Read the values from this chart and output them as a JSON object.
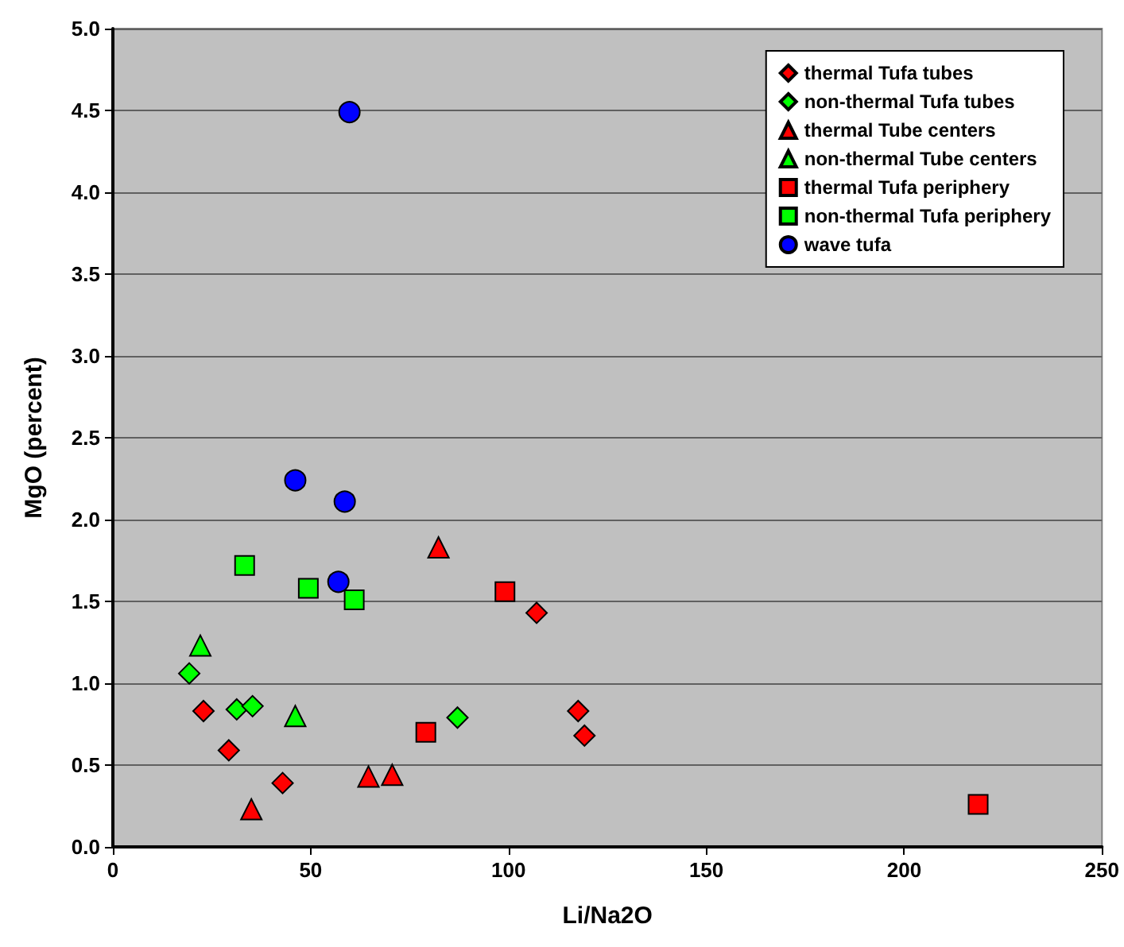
{
  "chart_data": {
    "type": "scatter",
    "xlabel": "Li/Na2O",
    "ylabel": "MgO (percent)",
    "xlim": [
      0,
      250
    ],
    "xticks": [
      0,
      50,
      100,
      150,
      200,
      250
    ],
    "ylim": [
      0,
      5
    ],
    "yticks": [
      {
        "value": 0,
        "label": "0.0"
      },
      0.5,
      {
        "value": 1,
        "label": "1.0"
      },
      1.5,
      {
        "value": 2,
        "label": "2.0"
      },
      2.5,
      {
        "value": 3,
        "label": "3.0"
      },
      3.5,
      {
        "value": 4,
        "label": "4.0"
      },
      4.5,
      {
        "value": 5,
        "label": "5.0"
      }
    ],
    "grid": "y",
    "legend": "top right",
    "series": [
      {
        "name": "thermal Tufa tubes",
        "color": "#ff0000",
        "marker": "diamond",
        "x": [
          22.9,
          29.3,
          42.9,
          107.1,
          117.6,
          119.2
        ],
        "values": [
          0.83,
          0.59,
          0.39,
          1.43,
          0.83,
          0.68
        ]
      },
      {
        "name": "non-thermal Tufa tubes",
        "color": "#00ff00",
        "marker": "diamond",
        "x": [
          19.3,
          31.3,
          35.3,
          87.1
        ],
        "values": [
          1.06,
          0.84,
          0.86,
          0.79
        ]
      },
      {
        "name": "thermal Tube centers",
        "color": "#ff0000",
        "marker": "triangle",
        "x": [
          35.0,
          64.6,
          70.6,
          82.3
        ],
        "values": [
          0.23,
          0.43,
          0.44,
          1.83
        ]
      },
      {
        "name": "non-thermal Tube centers",
        "color": "#00ff00",
        "marker": "triangle",
        "x": [
          22.1,
          46.1
        ],
        "values": [
          1.23,
          0.8
        ]
      },
      {
        "name": "thermal Tufa periphery",
        "color": "#ff0000",
        "marker": "square",
        "x": [
          79.1,
          99.1,
          218.7
        ],
        "values": [
          0.7,
          1.56,
          0.26
        ]
      },
      {
        "name": "non-thermal Tufa periphery",
        "color": "#00ff00",
        "marker": "square",
        "x": [
          33.3,
          49.4,
          61.0
        ],
        "values": [
          1.72,
          1.58,
          1.51
        ]
      },
      {
        "name": "wave tufa",
        "color": "#0000ff",
        "marker": "circle",
        "x": [
          46.1,
          58.6,
          57.0,
          59.8
        ],
        "values": [
          2.24,
          2.11,
          1.62,
          4.49
        ]
      }
    ]
  }
}
